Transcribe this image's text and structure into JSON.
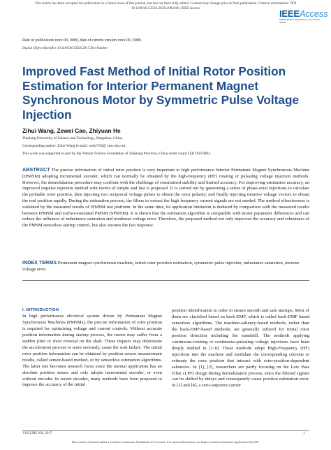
{
  "top_notice": {
    "line1": "This article has been accepted for publication in a future issue of this journal, but has not been fully edited. Content may change prior to final publication. Citation information: DOI",
    "line2": "10.1109/ACCESS.2020.2983106, IEEE Access"
  },
  "logo": {
    "word_main": "IEEE",
    "word_sub": "Access",
    "tagline": "Multidisciplinary  |  Rapid Review  |  Open Access Journal"
  },
  "publication_date": "Date of publication xxxx 00, 0000, date of current version xxxx 00, 0000.",
  "doi": "Digital Object Identifier 10.1109/ACCESS.2017.Doi Number",
  "title": "Improved Fast Method of Initial Rotor Position Estimation for Interior Permanent Magnet Synchronous Motor by Symmetric Pulse Voltage Injection",
  "authors": "Zihui Wang, Zewei Cao, Zhiyuan He",
  "affiliation": "Zhejiang University of Science and Technology, Hangzhou, China",
  "corresponding": "Corresponding author: Zihui Wang (e-mail: wzh2718@ zust.edu.cn).",
  "funding": "This work was supported in part by the Natural Science Foundation of Zhejiang Province, China under Grant LQ17E070002.",
  "abstract": {
    "label": "ABSTRACT",
    "text": "The precise information of initial rotor position is very important to high performance Interior Permanent Magnet Synchronous Machine (IPMSM) adopting incremental encoder, which can normally be obtained by the high-frequency (HF) rotating or pulsating voltage injection methods. However, the demodulation procedure may confront with the challenge of constrained stability and limited accuracy. For improving estimation accuracy, an improved impulse injection method with merits of simple and fast is proposed. It is carried out by generating a series of phase-axial injections to calculate the probable rotor position, then injecting two reciprocal voltage pulses to obtain the rotor polarity, and finally injecting iterative voltage vectors to obtain the real position rapidly. During the estimation process, the filters to extract the high frequency current signals are not needed. The method effectiveness is validated by the measured results of IPMSM test platform. In the same time, its application limitation is deduced by comparison with the measured results between IPMSM and surface-mounted PMSM (SPMSM). It is shown that the estimation algorithm is compatible with motor parameter differences and can reduce the influence of inductance saturation and nonlinear voltage error. Therefore, the proposed method not only improves the accuracy and robustness of the PMSM sensorless startup control, but also ensures the fast response."
  },
  "index_terms": {
    "label": "INDEX TERMS",
    "text": "Permanent magnet synchronous machine, initial rotor position estimation, symmetric pulse injection, inductance saturation, inverter voltage error"
  },
  "section": {
    "heading": "I. INTRODUCTION",
    "left_text": "In high performance electrical system driven by Permanent Magnet Synchronous Machines (PMSMs), the precise information of rotor position is required for optimizing voltage and current controls. Without accurate position information during startup process, the motor may suffer from a sudden jitter or short reversal on the shaft. These impacts may deteriorate the acceleration process or more seriously, cause the start failure. The initial rotor position information can be obtained by position sensor measurement results, called sensor-based method, or by sensorless estimation algorithms. The latter one becomes research focus since the normal application has no absolute position sensor and only adopts incremental encoder, or even without encoder. In recent decades, many methods have been proposed to improve the accuracy of the initial",
    "right_text": "position identification in order to ensure smooth and safe startups. Most of them are classified based on back-EMF, which is called back-EMF based sensorless algorithms. The machine-saliency-based methods, rather than the back-EMF-based methods, are generally utilized for initial rotor position detection including the standstill. The methods applying continuous-rotating or continuous-pulsating voltage injections have been deeply studied in [1-8]. These methods adopt High-Frequency (HF) injections into the machine and modulate the corresponding currents to estimate the rotor position that interact with rotor-position-dependent saliencies. In [1], [2], researchers are partly focusing on the Low Pass Filter (LPF) design during demodulation process, since the filtered signals can be shifted by delays and consequently cause position estimation error. In [3] and [4], a zero-sequence carrier"
  },
  "footer": {
    "volume": "VOLUME XX, 2017",
    "page": "1",
    "license": "This work is licensed under a Creative Commons Attribution 4.0 License. For more information, see https://creativecommons.org/licenses/by/4.0/."
  }
}
